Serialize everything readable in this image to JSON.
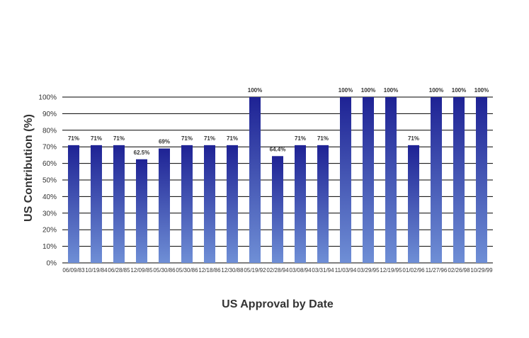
{
  "chart_data": {
    "type": "bar",
    "title": "",
    "xlabel": "US Approval by Date",
    "ylabel": "US Contribution (%)",
    "ylim": [
      0,
      100
    ],
    "yticks": [
      0,
      10,
      20,
      30,
      40,
      50,
      60,
      70,
      80,
      90,
      100
    ],
    "ytick_labels": [
      "0%",
      "10%",
      "20%",
      "30%",
      "40%",
      "50%",
      "60%",
      "70%",
      "80%",
      "90%",
      "100%"
    ],
    "grid": "horizontal",
    "legend": "none",
    "categories": [
      "06/09/83",
      "10/19/84",
      "06/28/85",
      "12/09/85",
      "05/30/86",
      "05/30/86",
      "12/18/86",
      "12/30/88",
      "05/19/92",
      "02/28/94",
      "03/08/94",
      "03/31/94",
      "11/03/94",
      "03/29/95",
      "12/19/95",
      "01/02/96",
      "11/27/96",
      "02/26/98",
      "10/29/99"
    ],
    "values": [
      71,
      71,
      71,
      62.5,
      69,
      71,
      71,
      71,
      100,
      64.4,
      71,
      71,
      100,
      100,
      100,
      71,
      100,
      100,
      100
    ],
    "data_labels": [
      "71%",
      "71%",
      "71%",
      "62.5%",
      "69%",
      "71%",
      "71%",
      "71%",
      "100%",
      "64.4%",
      "71%",
      "71%",
      "100%",
      "100%",
      "100%",
      "71%",
      "100%",
      "100%",
      "100%"
    ],
    "colors": {
      "bar_top": "#1e2294",
      "bar_bottom": "#6f8fd6",
      "grid": "#000000",
      "text": "#333333"
    }
  }
}
